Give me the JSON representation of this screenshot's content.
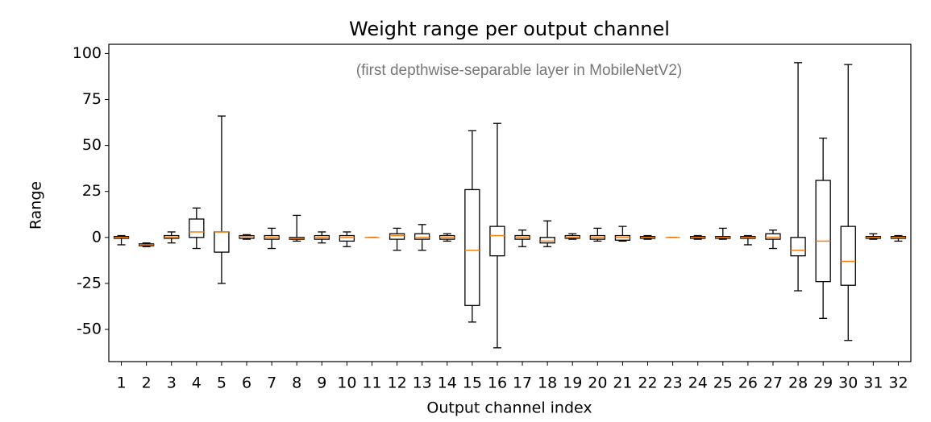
{
  "chart_data": {
    "type": "box",
    "title": "Weight range per output channel",
    "subtitle": "(first depthwise-separable layer in MobileNetV2)",
    "x_label": "Output channel index",
    "y_label": "Range",
    "categories": [
      "1",
      "2",
      "3",
      "4",
      "5",
      "6",
      "7",
      "8",
      "9",
      "10",
      "11",
      "12",
      "13",
      "14",
      "15",
      "16",
      "17",
      "18",
      "19",
      "20",
      "21",
      "22",
      "23",
      "24",
      "25",
      "26",
      "27",
      "28",
      "29",
      "30",
      "31",
      "32"
    ],
    "boxes": [
      {
        "whislo": -4,
        "q1": -0.5,
        "med": 0,
        "q3": 0.5,
        "whishi": 1
      },
      {
        "whislo": -5,
        "q1": -4.5,
        "med": -4,
        "q3": -3.5,
        "whishi": -3
      },
      {
        "whislo": -3,
        "q1": -0.5,
        "med": 0,
        "q3": 1,
        "whishi": 3
      },
      {
        "whislo": -6,
        "q1": 0,
        "med": 3,
        "q3": 10,
        "whishi": 16
      },
      {
        "whislo": -25,
        "q1": -8,
        "med": 3,
        "q3": 3,
        "whishi": 66
      },
      {
        "whislo": -1,
        "q1": -0.5,
        "med": 0.5,
        "q3": 1,
        "whishi": 1.5
      },
      {
        "whislo": -6,
        "q1": -1,
        "med": 0,
        "q3": 1,
        "whishi": 5
      },
      {
        "whislo": -2,
        "q1": -1,
        "med": -0.5,
        "q3": 0,
        "whishi": 12
      },
      {
        "whislo": -3,
        "q1": -1,
        "med": 0,
        "q3": 1,
        "whishi": 3
      },
      {
        "whislo": -5,
        "q1": -2,
        "med": 0,
        "q3": 1,
        "whishi": 3
      },
      {
        "whislo": 0,
        "q1": 0,
        "med": 0,
        "q3": 0,
        "whishi": 0
      },
      {
        "whislo": -7,
        "q1": -1,
        "med": 1,
        "q3": 2,
        "whishi": 5
      },
      {
        "whislo": -7,
        "q1": -1,
        "med": 0,
        "q3": 2,
        "whishi": 7
      },
      {
        "whislo": -2,
        "q1": -1,
        "med": 0,
        "q3": 1,
        "whishi": 2
      },
      {
        "whislo": -46,
        "q1": -37,
        "med": -7,
        "q3": 26,
        "whishi": 58
      },
      {
        "whislo": -60,
        "q1": -10,
        "med": 1,
        "q3": 6,
        "whishi": 62
      },
      {
        "whislo": -5,
        "q1": -1,
        "med": 0,
        "q3": 1,
        "whishi": 4
      },
      {
        "whislo": -5,
        "q1": -3,
        "med": -2,
        "q3": 0,
        "whishi": 9
      },
      {
        "whislo": -1,
        "q1": -0.5,
        "med": 0,
        "q3": 1,
        "whishi": 2
      },
      {
        "whislo": -2,
        "q1": -1,
        "med": 0,
        "q3": 1,
        "whishi": 5
      },
      {
        "whislo": -2,
        "q1": -1.5,
        "med": 0,
        "q3": 1,
        "whishi": 6
      },
      {
        "whislo": -1,
        "q1": -0.5,
        "med": 0,
        "q3": 0.5,
        "whishi": 1
      },
      {
        "whislo": 0,
        "q1": 0,
        "med": 0,
        "q3": 0,
        "whishi": 0
      },
      {
        "whislo": -1,
        "q1": -0.5,
        "med": 0,
        "q3": 0.5,
        "whishi": 1
      },
      {
        "whislo": -1,
        "q1": -0.5,
        "med": 0,
        "q3": 0.5,
        "whishi": 5
      },
      {
        "whislo": -4,
        "q1": -0.5,
        "med": 0,
        "q3": 0.5,
        "whishi": 1
      },
      {
        "whislo": -6,
        "q1": -1,
        "med": 0,
        "q3": 2,
        "whishi": 4
      },
      {
        "whislo": -29,
        "q1": -10,
        "med": -7,
        "q3": 0,
        "whishi": 95
      },
      {
        "whislo": -44,
        "q1": -24,
        "med": -2,
        "q3": 31,
        "whishi": 54
      },
      {
        "whislo": -56,
        "q1": -26,
        "med": -13,
        "q3": 6,
        "whishi": 94
      },
      {
        "whislo": -1,
        "q1": -0.5,
        "med": 0,
        "q3": 0.5,
        "whishi": 2
      },
      {
        "whislo": -2,
        "q1": -0.5,
        "med": 0,
        "q3": 0.5,
        "whishi": 1
      }
    ],
    "box_color": "#000000",
    "median_color": "#ff7f0e",
    "ylim": [
      -67.5,
      105
    ],
    "yticks": [
      -50,
      -25,
      0,
      25,
      50,
      75,
      100
    ],
    "grid": false
  }
}
